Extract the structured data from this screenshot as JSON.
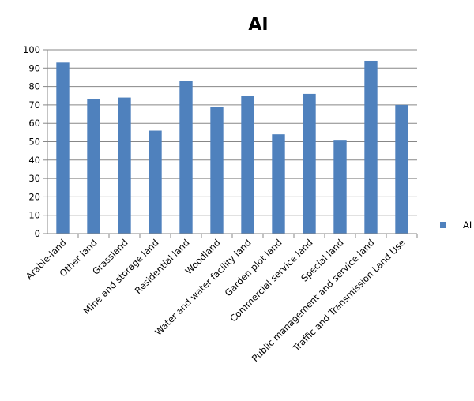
{
  "chart_data": {
    "type": "bar",
    "title": "AI",
    "xlabel": "",
    "ylabel": "",
    "ylim": [
      0,
      100
    ],
    "yticks": [
      0,
      10,
      20,
      30,
      40,
      50,
      60,
      70,
      80,
      90,
      100
    ],
    "grid": true,
    "legend_position": "right",
    "categories": [
      "Arable-land",
      "Other land",
      "Grassland",
      "Mine and storage land",
      "Residential land",
      "Woodland",
      "Water and water facility land",
      "Garden plot land",
      "Commercial service land",
      "Special land",
      "Public management and service land",
      "Traffic and Transmission Land Use"
    ],
    "series": [
      {
        "name": "AI",
        "color": "#4f81bd",
        "values": [
          93,
          73,
          74,
          56,
          83,
          69,
          75,
          54,
          76,
          51,
          94,
          70
        ]
      }
    ]
  }
}
